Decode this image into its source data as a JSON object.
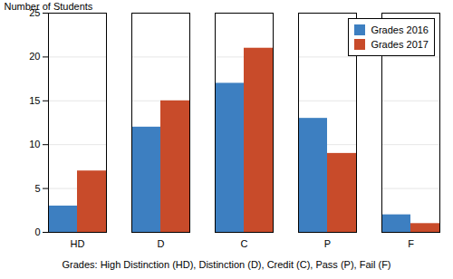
{
  "chart_data": {
    "type": "bar",
    "categories": [
      "HD",
      "D",
      "C",
      "P",
      "F"
    ],
    "series": [
      {
        "name": "Grades 2016",
        "color": "#3d7fc1",
        "values": [
          3,
          12,
          17,
          13,
          2
        ]
      },
      {
        "name": "Grades 2017",
        "color": "#c84b2a",
        "values": [
          7,
          15,
          21,
          9,
          1
        ]
      }
    ],
    "ylabel": "Number of Students",
    "ylim": [
      0,
      25
    ],
    "yticks": [
      0,
      5,
      10,
      15,
      20,
      25
    ],
    "grid": true,
    "legend": "upper right",
    "annotation": "Grades: High Distinction (HD), Distinction (D), Credit (C), Pass (P), Fail (F)"
  }
}
